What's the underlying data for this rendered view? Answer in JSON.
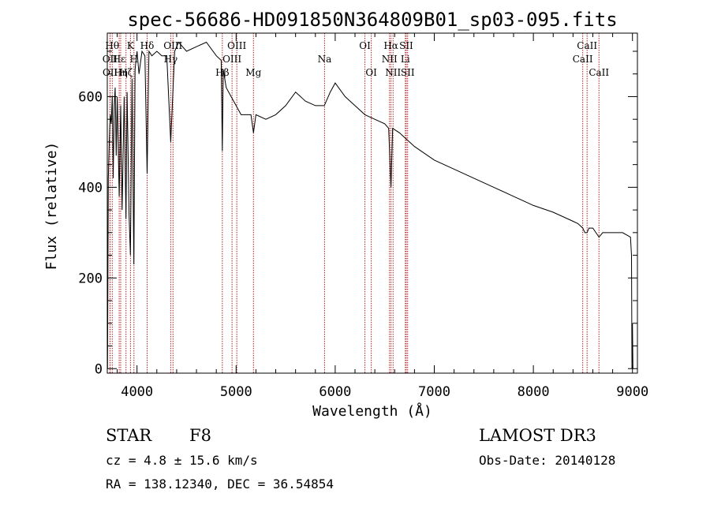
{
  "chart_data": {
    "type": "line",
    "title": "spec-56686-HD091850N364809B01_sp03-095.fits",
    "xlabel": "Wavelength (Å)",
    "ylabel": "Flux (relative)",
    "xlim": [
      3700,
      9050
    ],
    "ylim": [
      -10,
      740
    ],
    "xticks": [
      4000,
      5000,
      6000,
      7000,
      8000,
      9000
    ],
    "yticks": [
      0,
      200,
      400,
      600
    ],
    "series": [
      {
        "name": "flux",
        "x": [
          3700,
          3702,
          3710,
          3720,
          3730,
          3740,
          3750,
          3760,
          3770,
          3780,
          3790,
          3800,
          3820,
          3835,
          3850,
          3870,
          3889,
          3900,
          3920,
          3933,
          3950,
          3968,
          3980,
          4000,
          4020,
          4050,
          4080,
          4102,
          4120,
          4150,
          4200,
          4250,
          4300,
          4340,
          4380,
          4420,
          4500,
          4600,
          4700,
          4800,
          4850,
          4861,
          4870,
          4900,
          4950,
          5000,
          5050,
          5100,
          5150,
          5175,
          5200,
          5300,
          5400,
          5500,
          5600,
          5700,
          5800,
          5890,
          5950,
          6000,
          6100,
          6200,
          6300,
          6400,
          6500,
          6540,
          6563,
          6580,
          6650,
          6700,
          6800,
          7000,
          7200,
          7400,
          7600,
          7800,
          8000,
          8200,
          8400,
          8450,
          8498,
          8520,
          8542,
          8560,
          8600,
          8662,
          8700,
          8800,
          8900,
          8980,
          8990,
          8995,
          9000,
          9005
        ],
        "y": [
          100,
          0,
          420,
          500,
          560,
          540,
          600,
          420,
          580,
          620,
          470,
          600,
          380,
          580,
          350,
          600,
          330,
          610,
          340,
          250,
          640,
          230,
          660,
          700,
          650,
          700,
          690,
          430,
          700,
          690,
          700,
          690,
          690,
          500,
          700,
          720,
          700,
          710,
          720,
          690,
          680,
          480,
          660,
          620,
          600,
          580,
          560,
          560,
          560,
          520,
          560,
          550,
          560,
          580,
          610,
          590,
          580,
          580,
          610,
          630,
          600,
          580,
          560,
          550,
          540,
          530,
          400,
          530,
          520,
          510,
          490,
          460,
          440,
          420,
          400,
          380,
          360,
          345,
          325,
          320,
          310,
          300,
          300,
          310,
          310,
          290,
          300,
          300,
          300,
          290,
          250,
          0,
          100,
          0
        ]
      }
    ],
    "spectral_lines": [
      {
        "label": "Hθ",
        "wavelength": 3750,
        "row": 1
      },
      {
        "label": "OII",
        "wavelength": 3727,
        "row": 2
      },
      {
        "label": "OII",
        "wavelength": 3729,
        "row": 3
      },
      {
        "label": "Hε",
        "wavelength": 3820,
        "row": 2
      },
      {
        "label": "Hη",
        "wavelength": 3835,
        "row": 3
      },
      {
        "label": "Hζ",
        "wavelength": 3889,
        "row": 3
      },
      {
        "label": "K",
        "wavelength": 3934,
        "row": 1
      },
      {
        "label": "H",
        "wavelength": 3969,
        "row": 2
      },
      {
        "label": "Hδ",
        "wavelength": 4102,
        "row": 1
      },
      {
        "label": "OIII",
        "wavelength": 4363,
        "row": 1
      },
      {
        "label": "Hγ",
        "wavelength": 4340,
        "row": 2
      },
      {
        "label": "Hβ",
        "wavelength": 4861,
        "row": 3
      },
      {
        "label": "OIII",
        "wavelength": 5007,
        "row": 1
      },
      {
        "label": "OIII",
        "wavelength": 4959,
        "row": 2
      },
      {
        "label": "Mg",
        "wavelength": 5175,
        "row": 3
      },
      {
        "label": "Na",
        "wavelength": 5893,
        "row": 2
      },
      {
        "label": "OI",
        "wavelength": 6300,
        "row": 1
      },
      {
        "label": "OI",
        "wavelength": 6364,
        "row": 3
      },
      {
        "label": "Hα",
        "wavelength": 6563,
        "row": 1
      },
      {
        "label": "NII",
        "wavelength": 6548,
        "row": 2
      },
      {
        "label": "NII",
        "wavelength": 6584,
        "row": 3
      },
      {
        "label": "SII",
        "wavelength": 6717,
        "row": 1
      },
      {
        "label": "Li",
        "wavelength": 6708,
        "row": 2
      },
      {
        "label": "SII",
        "wavelength": 6731,
        "row": 3
      },
      {
        "label": "CaII",
        "wavelength": 8542,
        "row": 1
      },
      {
        "label": "CaII",
        "wavelength": 8498,
        "row": 2
      },
      {
        "label": "CaII",
        "wavelength": 8662,
        "row": 3
      }
    ],
    "colors": {
      "axis": "#000000",
      "spectrum": "#000000",
      "line_markers": "#b22222"
    }
  },
  "info": {
    "object_type": "STAR",
    "subclass": "F8",
    "redshift": "cz = 4.8 ± 15.6 km/s",
    "coords": "RA = 138.12340, DEC =  36.54854",
    "survey": "LAMOST DR3",
    "obs_date": "Obs-Date: 20140128"
  }
}
